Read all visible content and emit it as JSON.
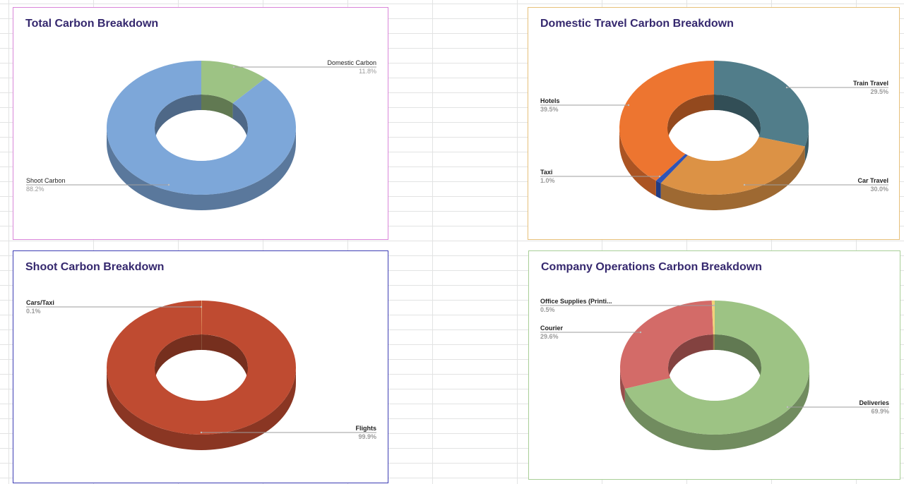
{
  "chart_data": [
    {
      "type": "pie",
      "id": "total",
      "title": "Total Carbon Breakdown",
      "donut": true,
      "three_d": true,
      "slices": [
        {
          "label": "Domestic Carbon",
          "value": 11.8,
          "pct_label": "11.8%",
          "color": "#9dc384",
          "side": "right"
        },
        {
          "label": "Shoot Carbon",
          "value": 88.2,
          "pct_label": "88.2%",
          "color": "#7da7d9",
          "side": "left"
        }
      ],
      "border_color": "#d986d9"
    },
    {
      "type": "pie",
      "id": "domestic",
      "title": "Domestic Travel Carbon Breakdown",
      "donut": true,
      "three_d": true,
      "slices": [
        {
          "label": "Train Travel",
          "value": 29.5,
          "pct_label": "29.5%",
          "color": "#517d8a",
          "side": "right"
        },
        {
          "label": "Car Travel",
          "value": 30.0,
          "pct_label": "30.0%",
          "color": "#dc9245",
          "side": "right"
        },
        {
          "label": "Taxi",
          "value": 1.0,
          "pct_label": "1.0%",
          "color": "#2f54b6",
          "side": "left"
        },
        {
          "label": "Hotels",
          "value": 39.5,
          "pct_label": "39.5%",
          "color": "#ed7530",
          "side": "left"
        }
      ],
      "border_color": "#e6c07a"
    },
    {
      "type": "pie",
      "id": "shoot",
      "title": "Shoot Carbon Breakdown",
      "donut": true,
      "three_d": true,
      "slices": [
        {
          "label": "Cars/Taxi",
          "value": 0.1,
          "pct_label": "0.1%",
          "color": "#e8a060",
          "side": "left"
        },
        {
          "label": "Flights",
          "value": 99.9,
          "pct_label": "99.9%",
          "color": "#bf4b31",
          "side": "right"
        }
      ],
      "border_color": "#3c3cb4"
    },
    {
      "type": "pie",
      "id": "operations",
      "title": "Company Operations Carbon Breakdown",
      "donut": true,
      "three_d": true,
      "slices": [
        {
          "label": "Deliveries",
          "value": 69.9,
          "pct_label": "69.9%",
          "color": "#9dc384",
          "side": "right"
        },
        {
          "label": "Courier",
          "value": 29.6,
          "pct_label": "29.6%",
          "color": "#d36b68",
          "side": "left"
        },
        {
          "label": "Office Supplies (Printi...",
          "value": 0.5,
          "pct_label": "0.5%",
          "color": "#f2d27a",
          "side": "left"
        }
      ],
      "border_color": "#a8cf97"
    }
  ]
}
